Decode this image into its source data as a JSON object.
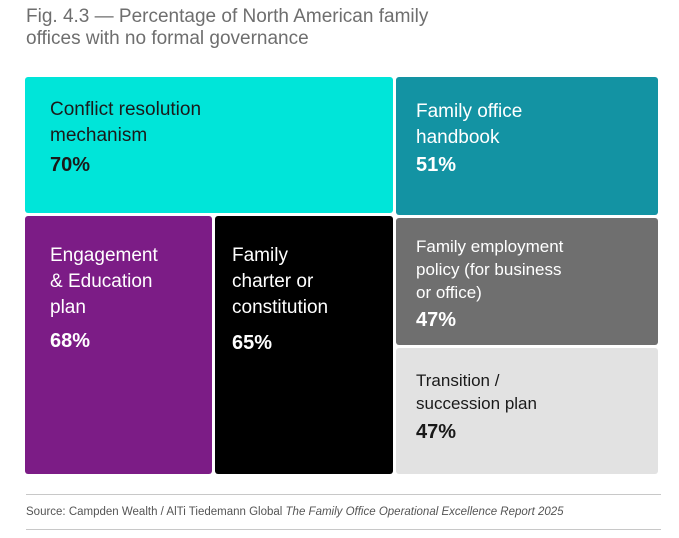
{
  "title_lines": [
    "Fig. 4.3 — Percentage of North American family",
    "offices with no formal governance"
  ],
  "chart_data": {
    "type": "treemap",
    "title": "Fig. 4.3 — Percentage of North American family offices with no formal governance",
    "unit": "%",
    "items": [
      {
        "label_lines": [
          "Conflict resolution",
          "mechanism"
        ],
        "label": "Conflict resolution mechanism",
        "value": 70,
        "display": "70%",
        "color": "#00e5d9",
        "text_color": "#1a1a1a"
      },
      {
        "label_lines": [
          "Family office",
          "handbook"
        ],
        "label": "Family office handbook",
        "value": 51,
        "display": "51%",
        "color": "#1393a3",
        "text_color": "#ffffff"
      },
      {
        "label_lines": [
          "Engagement",
          "& Education",
          "plan"
        ],
        "label": "Engagement & Education plan",
        "value": 68,
        "display": "68%",
        "color": "#7c1c86",
        "text_color": "#ffffff"
      },
      {
        "label_lines": [
          "Family",
          "charter or",
          "constitution"
        ],
        "label": "Family charter or constitution",
        "value": 65,
        "display": "65%",
        "color": "#000000",
        "text_color": "#ffffff"
      },
      {
        "label_lines": [
          "Family employment",
          "policy (for business",
          "or office)"
        ],
        "label": "Family employment policy (for business or office)",
        "value": 47,
        "display": "47%",
        "color": "#6f6f6f",
        "text_color": "#ffffff"
      },
      {
        "label_lines": [
          "Transition /",
          "succession plan"
        ],
        "label": "Transition / succession plan",
        "value": 47,
        "display": "47%",
        "color": "#e2e2e2",
        "text_color": "#1a1a1a"
      }
    ]
  },
  "source": {
    "prefix": "Source: Campden Wealth / AlTi Tiedemann Global ",
    "italic": "The Family Office Operational Excellence Report 2025"
  }
}
